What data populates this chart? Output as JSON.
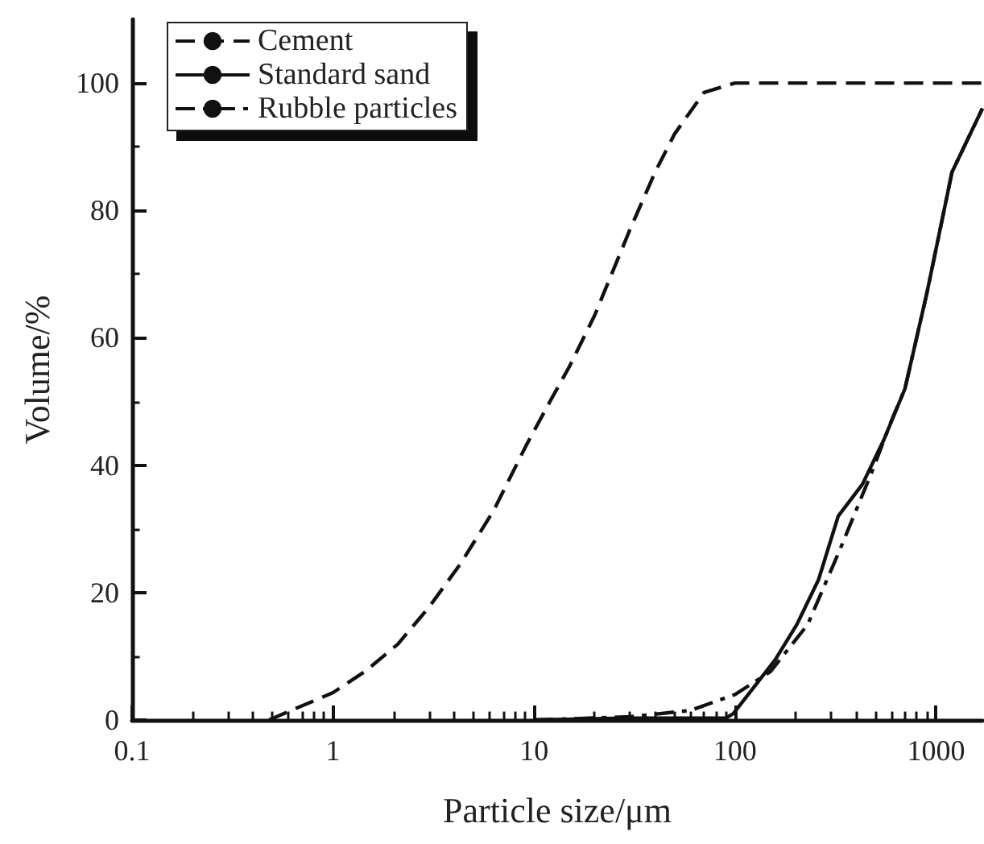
{
  "chart_data": {
    "type": "line",
    "xlabel": "Particle size/μm",
    "ylabel": "Volume/%",
    "log": "x",
    "xlim": [
      0.1,
      1700
    ],
    "xticks": [
      0.1,
      1,
      10,
      100,
      1000
    ],
    "ylim": [
      0,
      110
    ],
    "yticks": [
      0,
      20,
      40,
      60,
      80,
      100
    ],
    "grid": false,
    "legend": "top left",
    "marker": "none",
    "series": [
      {
        "name": "Cement",
        "color": "#111111",
        "line_style": "dashed",
        "x": [
          0.48,
          1.0,
          1.44,
          2.1,
          3.0,
          4.3,
          6.3,
          9.1,
          12,
          15,
          20,
          30,
          40,
          50,
          70,
          100,
          1700
        ],
        "values": [
          0,
          4.3,
          7.6,
          11.9,
          17.7,
          24.5,
          32.9,
          43,
          50,
          55.5,
          63.5,
          77,
          86,
          92,
          98.5,
          100,
          100
        ]
      },
      {
        "name": "Standard sand",
        "color": "#111111",
        "line_style": "solid",
        "x": [
          10,
          30,
          60,
          90,
          98,
          158,
          203,
          260,
          326,
          430,
          550,
          700,
          900,
          1200,
          1700
        ],
        "values": [
          0,
          0.3,
          0.3,
          0.3,
          1,
          9.4,
          15,
          22,
          32,
          37,
          44,
          52,
          67,
          86,
          96
        ]
      },
      {
        "name": "Rubble particles",
        "color": "#111111",
        "line_style": "dashdot",
        "x": [
          10,
          30,
          60,
          100,
          150,
          230,
          335,
          480,
          600,
          700,
          900,
          1200,
          1700
        ],
        "values": [
          0,
          0.5,
          1.5,
          4,
          7.6,
          15,
          27,
          39,
          47,
          52,
          67,
          86,
          96
        ]
      }
    ]
  }
}
